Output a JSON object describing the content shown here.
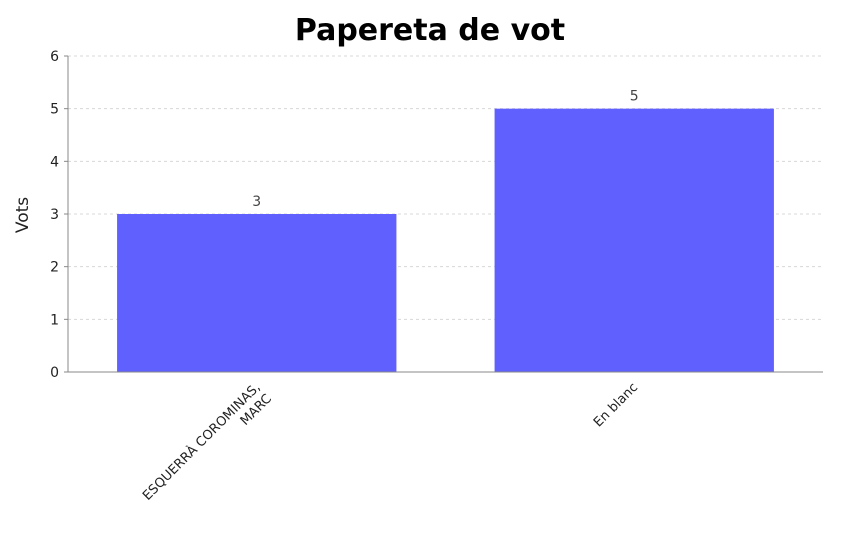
{
  "chart_data": {
    "type": "bar",
    "title": "Papereta de vot",
    "xlabel": "",
    "ylabel": "Vots",
    "ylim": [
      0,
      6
    ],
    "yticks": [
      0,
      1,
      2,
      3,
      4,
      5,
      6
    ],
    "grid": true,
    "categories": [
      [
        "ESQUERRÀ COROMINAS,",
        "MARC"
      ],
      [
        "En blanc"
      ]
    ],
    "values": [
      3,
      5
    ],
    "data_labels": [
      "3",
      "5"
    ],
    "bar_color": "#6060ff"
  }
}
